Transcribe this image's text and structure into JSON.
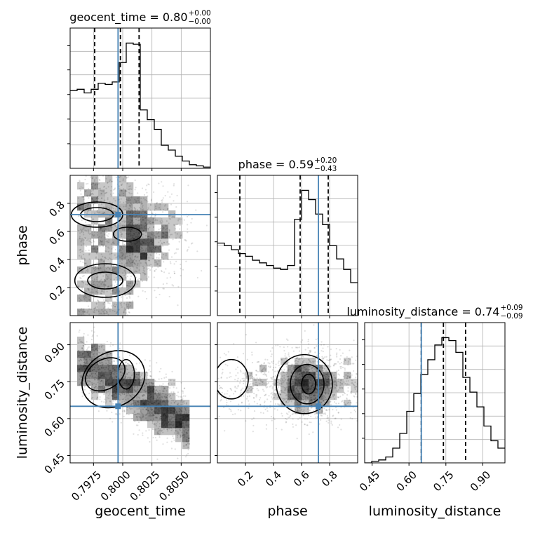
{
  "chart_data": {
    "type": "corner",
    "parameters": [
      "geocent_time",
      "phase",
      "luminosity_distance"
    ],
    "truths": {
      "geocent_time": 0.7996,
      "phase": 0.72,
      "luminosity_distance": 0.65
    },
    "ranges": {
      "geocent_time": [
        0.7955,
        0.8075
      ],
      "phase": [
        0.0,
        1.0
      ],
      "luminosity_distance": [
        0.42,
        0.99
      ]
    },
    "ticks": {
      "geocent_time": [
        {
          "v": 0.7975,
          "label": "0.7975"
        },
        {
          "v": 0.8,
          "label": "0.8000"
        },
        {
          "v": 0.8025,
          "label": "0.8025"
        },
        {
          "v": 0.805,
          "label": "0.8050"
        }
      ],
      "phase": [
        {
          "v": 0.2,
          "label": "0.2"
        },
        {
          "v": 0.4,
          "label": "0.4"
        },
        {
          "v": 0.6,
          "label": "0.6"
        },
        {
          "v": 0.8,
          "label": "0.8"
        }
      ],
      "luminosity_distance": [
        {
          "v": 0.45,
          "label": "0.45"
        },
        {
          "v": 0.6,
          "label": "0.60"
        },
        {
          "v": 0.75,
          "label": "0.75"
        },
        {
          "v": 0.9,
          "label": "0.90"
        }
      ]
    },
    "titles": [
      {
        "param": "geocent_time",
        "base": "geocent_time = 0.80",
        "sup": "+0.00",
        "sub": "−0.00"
      },
      {
        "param": "phase",
        "base": "phase = 0.59",
        "sup": "+0.20",
        "sub": "−0.43"
      },
      {
        "param": "luminosity_distance",
        "base": "luminosity_distance = 0.74",
        "sup": "+0.09",
        "sub": "−0.09"
      }
    ],
    "quantiles": {
      "geocent_time": [
        0.7976,
        0.7998,
        0.8014
      ],
      "phase": [
        0.16,
        0.59,
        0.79
      ],
      "luminosity_distance": [
        0.65,
        0.74,
        0.83
      ]
    },
    "histograms": {
      "geocent_time": {
        "edges": [
          0.7955,
          0.7961,
          0.7967,
          0.7973,
          0.7979,
          0.7985,
          0.7991,
          0.7997,
          0.8003,
          0.8009,
          0.8015,
          0.8021,
          0.8027,
          0.8033,
          0.8039,
          0.8045,
          0.8051,
          0.8057,
          0.8063,
          0.8069,
          0.8075
        ],
        "counts": [
          64,
          65,
          62,
          65,
          70,
          69,
          71,
          87,
          103,
          102,
          48,
          40,
          32,
          19,
          15,
          10,
          6,
          3,
          2,
          1
        ]
      },
      "phase": {
        "edges": [
          0.0,
          0.05,
          0.1,
          0.15,
          0.2,
          0.25,
          0.3,
          0.35,
          0.4,
          0.45,
          0.5,
          0.55,
          0.6,
          0.65,
          0.7,
          0.75,
          0.8,
          0.85,
          0.9,
          0.95,
          1.0
        ],
        "counts": [
          55,
          53,
          50,
          47,
          45,
          42,
          40,
          38,
          36,
          35,
          38,
          73,
          95,
          88,
          77,
          69,
          53,
          43,
          35,
          25
        ]
      },
      "luminosity_distance": {
        "edges": [
          0.42,
          0.4485,
          0.477,
          0.5055,
          0.534,
          0.5625,
          0.591,
          0.6195,
          0.648,
          0.6765,
          0.705,
          0.7335,
          0.762,
          0.7905,
          0.819,
          0.8475,
          0.876,
          0.9045,
          0.933,
          0.9615,
          0.99
        ],
        "counts": [
          0,
          1,
          2,
          4,
          10,
          20,
          35,
          47,
          60,
          70,
          80,
          85,
          83,
          75,
          58,
          48,
          38,
          25,
          15,
          10
        ]
      }
    }
  }
}
